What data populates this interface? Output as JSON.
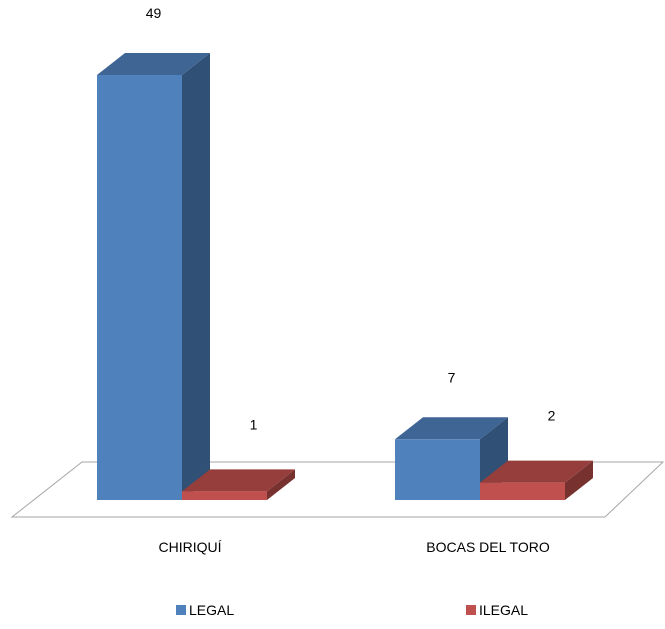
{
  "chart_data": {
    "type": "bar",
    "categories": [
      "CHIRIQUÍ",
      "BOCAS DEL TORO"
    ],
    "series": [
      {
        "name": "LEGAL",
        "values": [
          49,
          7
        ],
        "color": "#4f81bd"
      },
      {
        "name": "ILEGAL",
        "values": [
          1,
          2
        ],
        "color": "#c0504d"
      }
    ],
    "ylim": [
      0,
      49
    ],
    "grid": false,
    "legend_position": "bottom",
    "data_labels": true,
    "style": "3d-clustered-column"
  }
}
